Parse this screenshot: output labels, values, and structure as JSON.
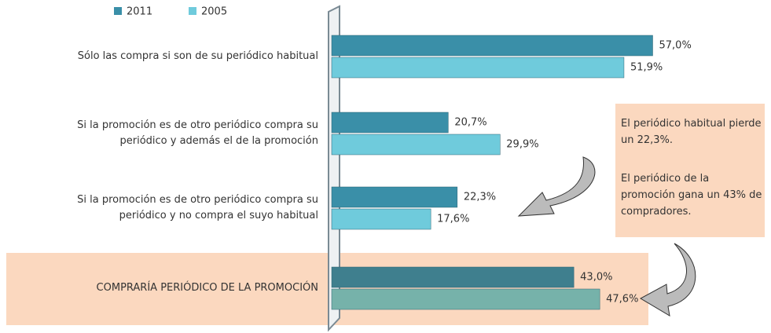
{
  "chart_data": {
    "type": "hbar",
    "categories": [
      "Sólo las compra si son de su periódico habitual",
      "Si la promoción es de otro periódico compra su periódico y además el de la promoción",
      "Si la promoción es de otro periódico compra su periódico y no compra el suyo habitual",
      "COMPRARÍA PERIÓDICO DE LA PROMOCIÓN"
    ],
    "series": [
      {
        "name": "2011",
        "color": "#3a8fa8",
        "colors": [
          "#3a8fa8",
          "#3a8fa8",
          "#3a8fa8",
          "#3f7f8e"
        ],
        "values": [
          57.0,
          20.7,
          22.3,
          43.0
        ],
        "value_labels": [
          "57,0%",
          "20,7%",
          "22,3%",
          "43,0%"
        ]
      },
      {
        "name": "2005",
        "color": "#6fcbdc",
        "colors": [
          "#6fcbdc",
          "#6fcbdc",
          "#6fcbdc",
          "#76b2aa"
        ],
        "values": [
          51.9,
          29.9,
          17.6,
          47.6
        ],
        "value_labels": [
          "51,9%",
          "29,9%",
          "17,6%",
          "47,6%"
        ]
      }
    ],
    "xlim": [
      0,
      60
    ],
    "legend": "top-left",
    "annotations": [
      "El periódico habitual pierde un 22,3%.",
      "El periódico de la promoción gana un 43% de compradores."
    ]
  }
}
